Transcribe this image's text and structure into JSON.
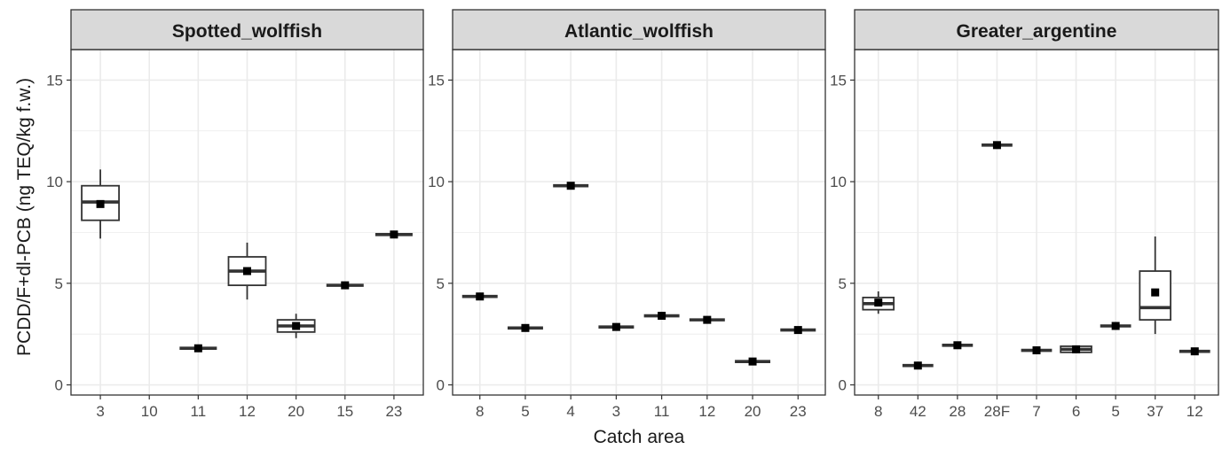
{
  "chart_data": {
    "type": "boxplot",
    "ylabel": "PCDD/F+dl-PCB (ng TEQ/kg f.w.)",
    "xlabel": "Catch area",
    "ylim": [
      -0.5,
      16.5
    ],
    "yticks": [
      0,
      5,
      10,
      15
    ],
    "y_minor_gridlines": [
      2.5,
      7.5,
      12.5
    ],
    "grid": true,
    "colors": {
      "panel_border": "#333333",
      "strip_fill": "#d9d9d9",
      "grid": "#ebebeb",
      "box": "#333333",
      "mean_marker": "#000000"
    },
    "panels": [
      {
        "title": "Spotted_wolffish",
        "categories": [
          "3",
          "10",
          "11",
          "12",
          "20",
          "15",
          "23"
        ],
        "boxes": [
          {
            "category": "3",
            "min": 7.2,
            "q1": 8.1,
            "median": 9.0,
            "q3": 9.8,
            "max": 10.6,
            "mean": 8.9
          },
          {
            "category": "11",
            "min": 1.8,
            "q1": 1.8,
            "median": 1.8,
            "q3": 1.8,
            "max": 1.8,
            "mean": 1.8
          },
          {
            "category": "12",
            "min": 4.2,
            "q1": 4.9,
            "median": 5.6,
            "q3": 6.3,
            "max": 7.0,
            "mean": 5.6
          },
          {
            "category": "20",
            "min": 2.3,
            "q1": 2.6,
            "median": 2.9,
            "q3": 3.2,
            "max": 3.5,
            "mean": 2.9
          },
          {
            "category": "15",
            "min": 4.9,
            "q1": 4.9,
            "median": 4.9,
            "q3": 4.9,
            "max": 4.9,
            "mean": 4.9
          },
          {
            "category": "23",
            "min": 7.4,
            "q1": 7.4,
            "median": 7.4,
            "q3": 7.4,
            "max": 7.4,
            "mean": 7.4
          }
        ]
      },
      {
        "title": "Atlantic_wolffish",
        "categories": [
          "8",
          "5",
          "4",
          "3",
          "11",
          "12",
          "20",
          "23"
        ],
        "boxes": [
          {
            "category": "8",
            "min": 4.35,
            "q1": 4.35,
            "median": 4.35,
            "q3": 4.35,
            "max": 4.35,
            "mean": 4.35
          },
          {
            "category": "5",
            "min": 2.8,
            "q1": 2.8,
            "median": 2.8,
            "q3": 2.8,
            "max": 2.8,
            "mean": 2.8
          },
          {
            "category": "4",
            "min": 9.8,
            "q1": 9.8,
            "median": 9.8,
            "q3": 9.8,
            "max": 9.8,
            "mean": 9.8
          },
          {
            "category": "3",
            "min": 2.85,
            "q1": 2.85,
            "median": 2.85,
            "q3": 2.85,
            "max": 2.85,
            "mean": 2.85
          },
          {
            "category": "11",
            "min": 3.4,
            "q1": 3.4,
            "median": 3.4,
            "q3": 3.4,
            "max": 3.4,
            "mean": 3.4
          },
          {
            "category": "12",
            "min": 3.2,
            "q1": 3.2,
            "median": 3.2,
            "q3": 3.2,
            "max": 3.2,
            "mean": 3.2
          },
          {
            "category": "20",
            "min": 1.15,
            "q1": 1.15,
            "median": 1.15,
            "q3": 1.15,
            "max": 1.15,
            "mean": 1.15
          },
          {
            "category": "23",
            "min": 2.7,
            "q1": 2.7,
            "median": 2.7,
            "q3": 2.7,
            "max": 2.7,
            "mean": 2.7
          }
        ]
      },
      {
        "title": "Greater_argentine",
        "categories": [
          "8",
          "42",
          "28",
          "28F",
          "7",
          "6",
          "5",
          "37",
          "12"
        ],
        "boxes": [
          {
            "category": "8",
            "min": 3.5,
            "q1": 3.7,
            "median": 4.0,
            "q3": 4.3,
            "max": 4.6,
            "mean": 4.05
          },
          {
            "category": "42",
            "min": 0.95,
            "q1": 0.95,
            "median": 0.95,
            "q3": 0.95,
            "max": 0.95,
            "mean": 0.95
          },
          {
            "category": "28",
            "min": 1.95,
            "q1": 1.95,
            "median": 1.95,
            "q3": 1.95,
            "max": 1.95,
            "mean": 1.95
          },
          {
            "category": "28F",
            "min": 11.8,
            "q1": 11.8,
            "median": 11.8,
            "q3": 11.8,
            "max": 11.8,
            "mean": 11.8
          },
          {
            "category": "7",
            "min": 1.7,
            "q1": 1.7,
            "median": 1.7,
            "q3": 1.7,
            "max": 1.7,
            "mean": 1.7
          },
          {
            "category": "6",
            "min": 1.6,
            "q1": 1.6,
            "median": 1.75,
            "q3": 1.9,
            "max": 1.9,
            "mean": 1.75
          },
          {
            "category": "5",
            "min": 2.9,
            "q1": 2.9,
            "median": 2.9,
            "q3": 2.9,
            "max": 2.9,
            "mean": 2.9
          },
          {
            "category": "37",
            "min": 2.5,
            "q1": 3.2,
            "median": 3.8,
            "q3": 5.6,
            "max": 7.3,
            "mean": 4.55
          },
          {
            "category": "12",
            "min": 1.65,
            "q1": 1.65,
            "median": 1.65,
            "q3": 1.65,
            "max": 1.65,
            "mean": 1.65
          }
        ]
      }
    ]
  }
}
